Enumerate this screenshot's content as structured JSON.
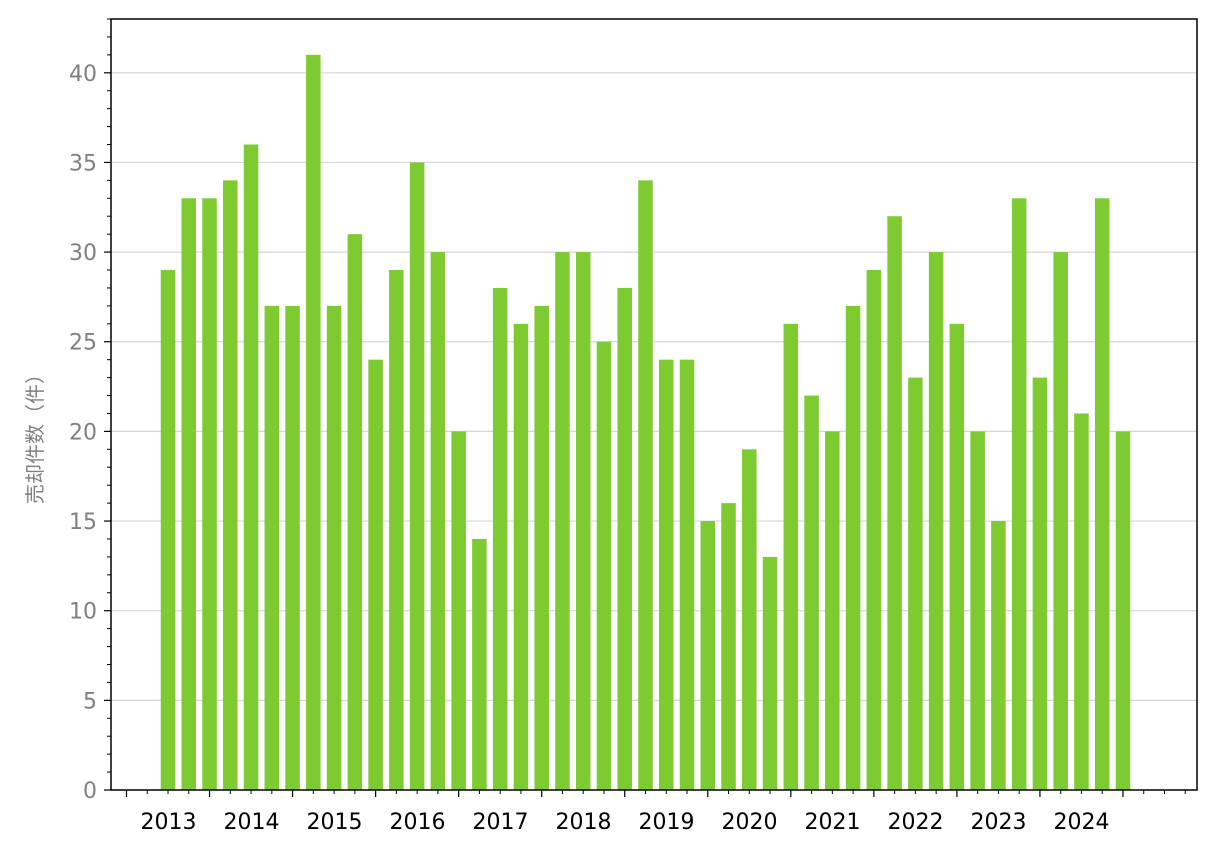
{
  "chart_data": {
    "type": "bar",
    "title": "",
    "xlabel": "",
    "ylabel": "売却件数（件）",
    "ylim": [
      0,
      43
    ],
    "yticks": [
      0,
      5,
      10,
      15,
      20,
      25,
      30,
      35,
      40
    ],
    "grid": "horizontal",
    "bar_color": "#7dcb31",
    "x_tick_labels": [
      "2013",
      "2014",
      "2015",
      "2016",
      "2017",
      "2018",
      "2019",
      "2020",
      "2021",
      "2022",
      "2023",
      "2024"
    ],
    "values": [
      29,
      33,
      33,
      34,
      36,
      27,
      27,
      41,
      27,
      31,
      24,
      29,
      35,
      30,
      20,
      14,
      28,
      26,
      27,
      30,
      30,
      25,
      28,
      34,
      24,
      24,
      15,
      16,
      19,
      13,
      26,
      22,
      20,
      27,
      29,
      32,
      23,
      30,
      26,
      20,
      15,
      33,
      23,
      30,
      21,
      33,
      20
    ]
  }
}
